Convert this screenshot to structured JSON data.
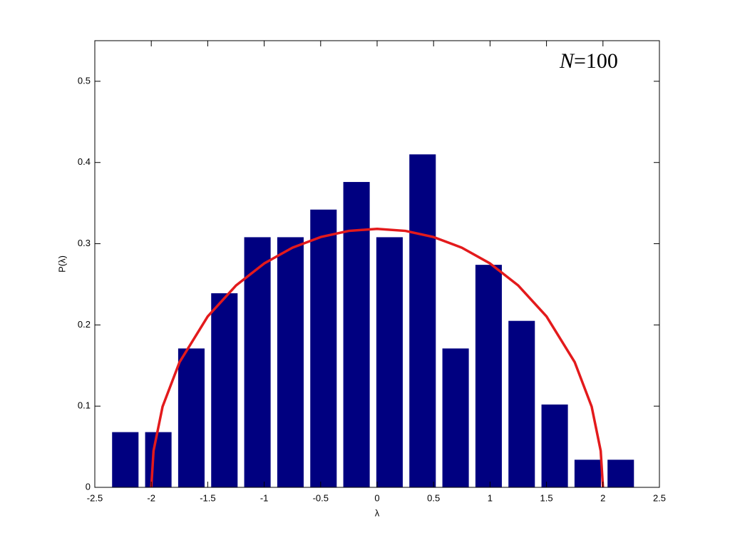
{
  "chart_data": {
    "type": "bar",
    "xlabel": "λ",
    "ylabel": "P(λ)",
    "annotation": {
      "variable": "N",
      "rest": "=100"
    },
    "xlim": [
      -2.5,
      2.5
    ],
    "ylim": [
      0,
      0.55
    ],
    "xticks": [
      -2.5,
      -2,
      -1.5,
      -1,
      -0.5,
      0,
      0.5,
      1,
      1.5,
      2,
      2.5
    ],
    "yticks": [
      0,
      0.1,
      0.2,
      0.3,
      0.4,
      0.5
    ],
    "series": [
      {
        "type": "bar",
        "color": "#000080",
        "x": [
          -2.23,
          -1.9375,
          -1.645,
          -1.3525,
          -1.06,
          -0.7675,
          -0.475,
          -0.1825,
          0.11,
          0.4025,
          0.695,
          0.9875,
          1.28,
          1.5725,
          1.865,
          2.1575
        ],
        "values": [
          0.068,
          0.068,
          0.171,
          0.239,
          0.308,
          0.308,
          0.342,
          0.376,
          0.308,
          0.41,
          0.171,
          0.274,
          0.205,
          0.102,
          0.034,
          0.034
        ]
      },
      {
        "type": "line",
        "color": "#e31a1c",
        "x": [
          -2,
          -1.98,
          -1.9,
          -1.75,
          -1.5,
          -1.25,
          -1,
          -0.75,
          -0.5,
          -0.25,
          0,
          0.25,
          0.5,
          0.75,
          1,
          1.25,
          1.5,
          1.75,
          1.9,
          1.98,
          2
        ],
        "values": [
          0,
          0.0449,
          0.0994,
          0.1541,
          0.2105,
          0.2485,
          0.2757,
          0.2951,
          0.3082,
          0.3158,
          0.3183,
          0.3158,
          0.3082,
          0.2951,
          0.2757,
          0.2485,
          0.2105,
          0.1541,
          0.0994,
          0.0449,
          0
        ]
      }
    ]
  }
}
